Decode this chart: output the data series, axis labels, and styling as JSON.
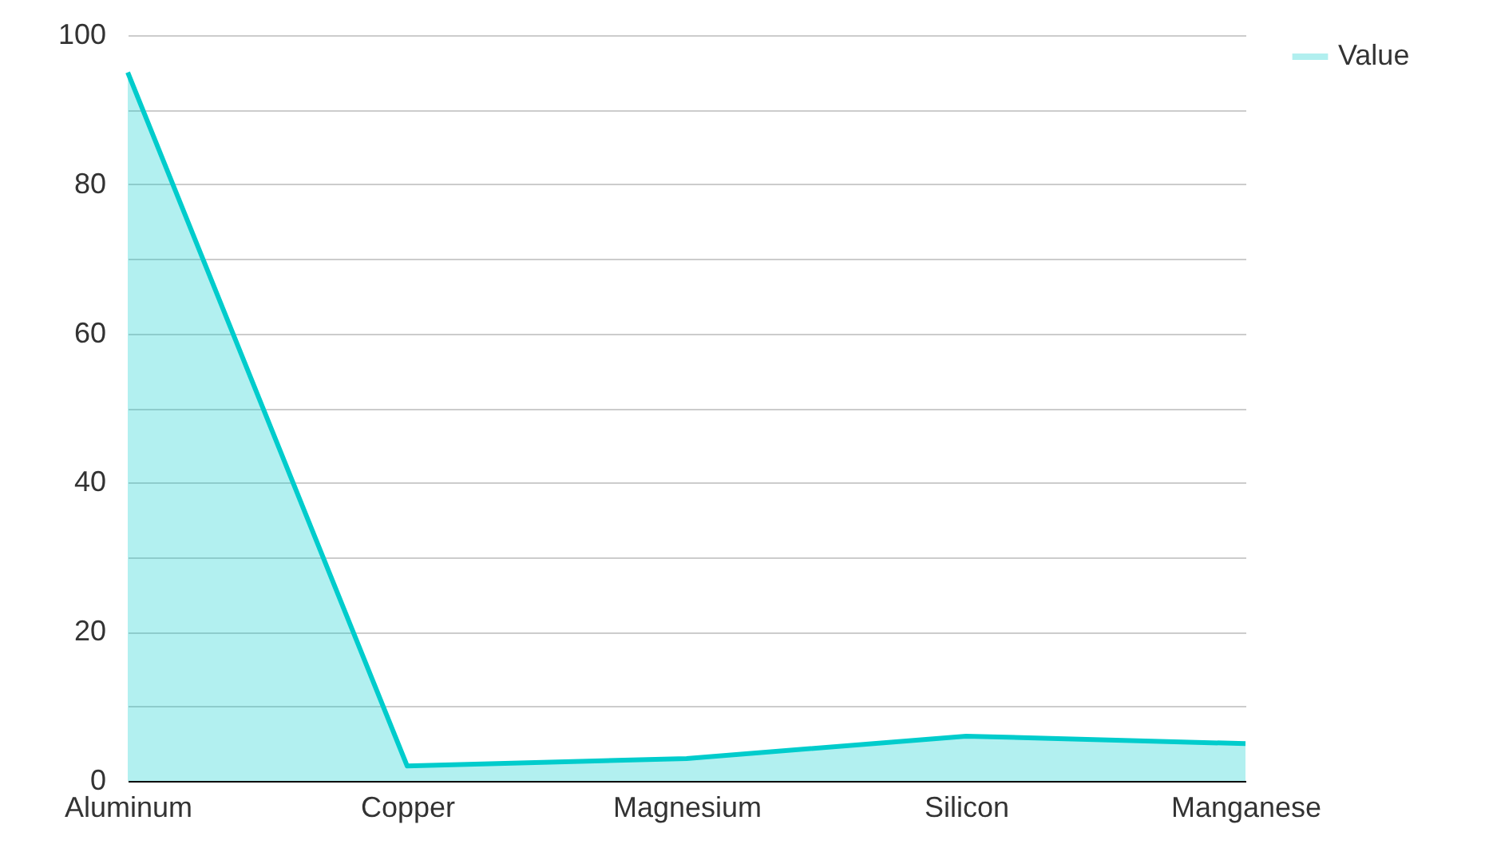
{
  "chart_data": {
    "type": "area",
    "categories": [
      "Aluminum",
      "Copper",
      "Magnesium",
      "Silicon",
      "Manganese"
    ],
    "series": [
      {
        "name": "Value",
        "color": "#00cccc",
        "values": [
          95,
          2,
          3,
          6,
          5
        ]
      }
    ],
    "ylim": [
      0,
      100
    ],
    "yticks": [
      0,
      {
        "value": 10,
        "label": null
      },
      20,
      {
        "value": 30,
        "label": null
      },
      40,
      {
        "value": 50,
        "label": null
      },
      60,
      {
        "value": 70,
        "label": null
      },
      80,
      {
        "value": 90,
        "label": null
      },
      100
    ],
    "grid": true,
    "legend": "top right"
  }
}
